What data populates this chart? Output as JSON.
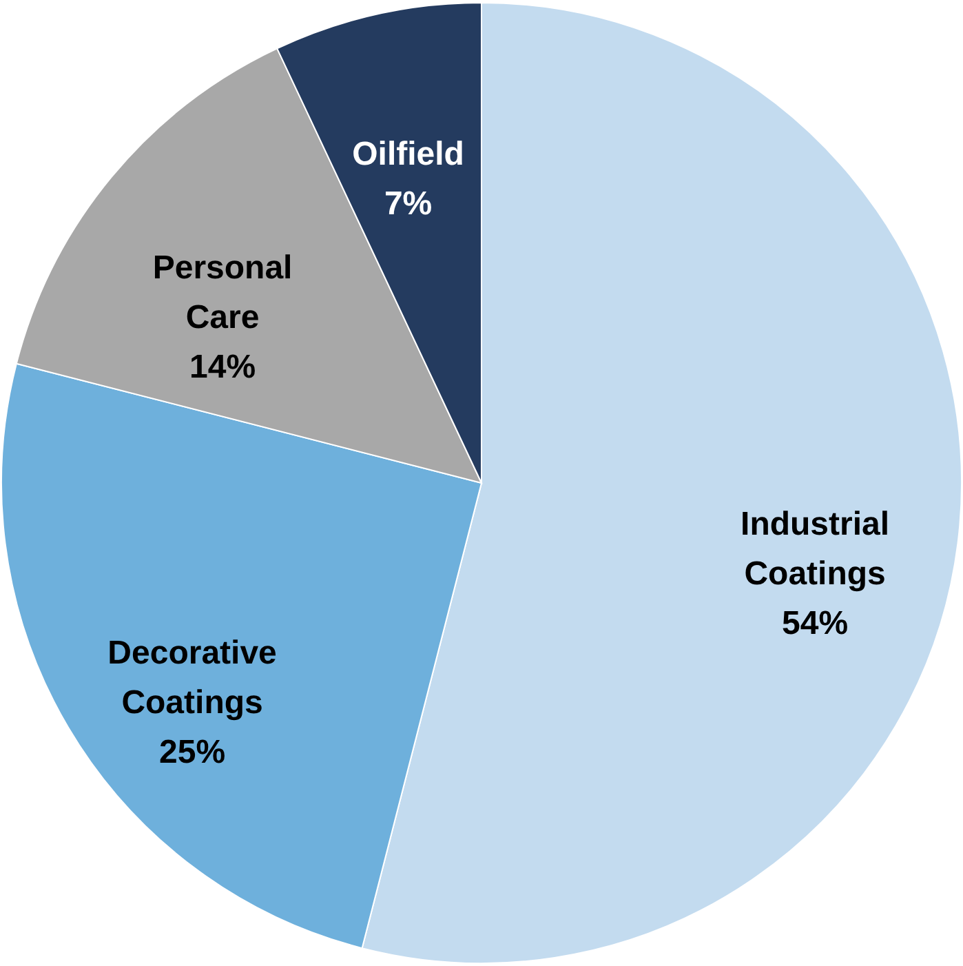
{
  "chart_data": {
    "type": "pie",
    "categories": [
      "Industrial Coatings",
      "Decorative Coatings",
      "Personal Care",
      "Oilfield"
    ],
    "values": [
      54,
      25,
      14,
      7
    ],
    "value_labels": [
      "54%",
      "25%",
      "14%",
      "7%"
    ],
    "colors": [
      "#c3dbef",
      "#6eb0dc",
      "#a8a8a8",
      "#243b5f"
    ]
  }
}
